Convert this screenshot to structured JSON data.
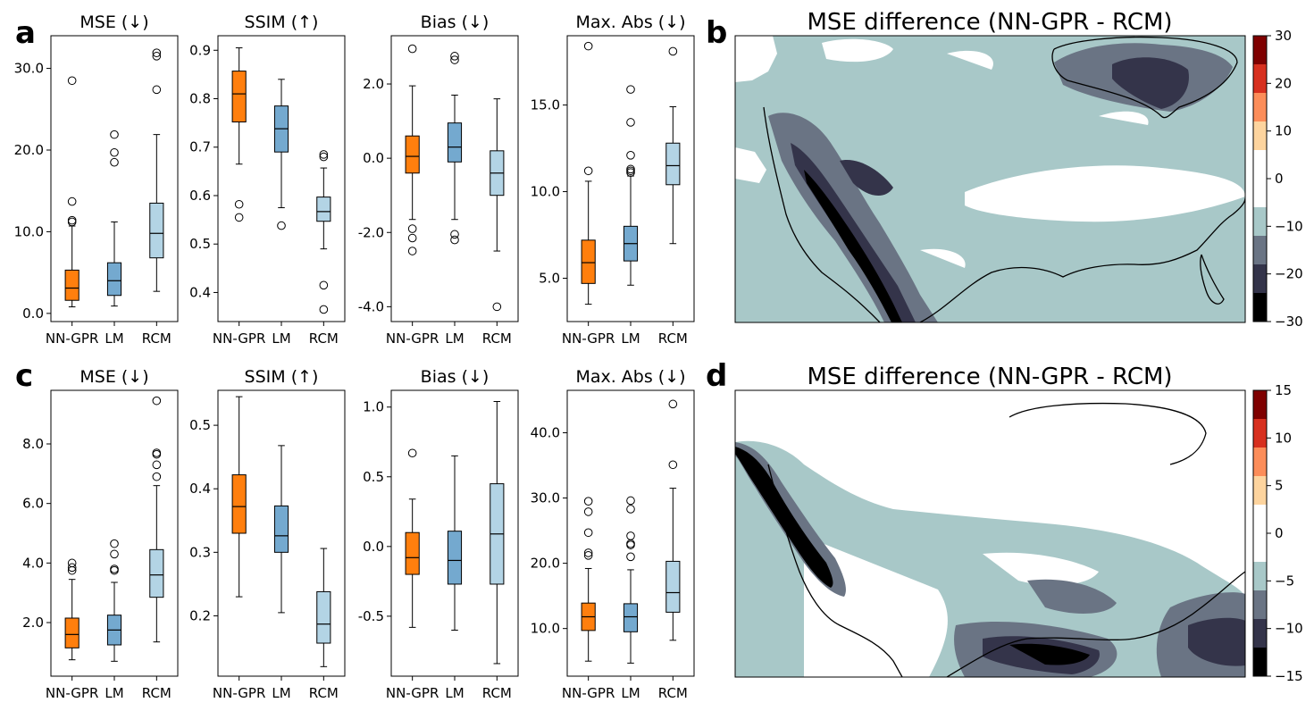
{
  "colors": {
    "nngpr": "#ff7f0e",
    "lm": "#74a9cf",
    "rcm": "#b3d4e5",
    "map_neg": [
      "#000000",
      "#34344a",
      "#6a7484",
      "#a8c8c8"
    ],
    "map_zero": "#ffffff",
    "map_pos": [
      "#fdd49e",
      "#fc8d59",
      "#d7301f",
      "#7f0000"
    ]
  },
  "panels": {
    "a": {
      "label": "a"
    },
    "b": {
      "label": "b",
      "title": "MSE difference (NN-GPR - RCM)",
      "colorbar_ticks": [
        "30",
        "20",
        "10",
        "0",
        "−10",
        "−20",
        "−30"
      ]
    },
    "c": {
      "label": "c"
    },
    "d": {
      "label": "d",
      "title": "MSE difference (NN-GPR - RCM)",
      "colorbar_ticks": [
        "15",
        "10",
        "5",
        "0",
        "−5",
        "−10",
        "−15"
      ]
    }
  },
  "chart_data": [
    {
      "type": "box",
      "id": "a1",
      "title": "MSE (↓)",
      "categories": [
        "NN-GPR",
        "LM",
        "RCM"
      ],
      "ylim": [
        -1.0,
        34.0
      ],
      "yticks": [
        0,
        10,
        20,
        30
      ],
      "ytick_labels": [
        "0.0",
        "10.0",
        "20.0",
        "30.0"
      ],
      "boxes": [
        {
          "whislo": 0.8,
          "q1": 1.6,
          "med": 3.1,
          "q3": 5.3,
          "whishi": 10.7,
          "fliers": [
            11.2,
            11.4,
            13.7,
            28.5
          ]
        },
        {
          "whislo": 0.9,
          "q1": 2.2,
          "med": 4.0,
          "q3": 6.2,
          "whishi": 11.2,
          "fliers": [
            18.5,
            19.7,
            21.9
          ]
        },
        {
          "whislo": 2.7,
          "q1": 6.8,
          "med": 9.8,
          "q3": 13.5,
          "whishi": 21.9,
          "fliers": [
            27.4,
            31.5,
            31.9
          ]
        }
      ]
    },
    {
      "type": "box",
      "id": "a2",
      "title": "SSIM (↑)",
      "categories": [
        "NN-GPR",
        "LM",
        "RCM"
      ],
      "ylim": [
        0.34,
        0.93
      ],
      "yticks": [
        0.4,
        0.5,
        0.6,
        0.7,
        0.8,
        0.9
      ],
      "ytick_labels": [
        "0.4",
        "0.5",
        "0.6",
        "0.7",
        "0.8",
        "0.9"
      ],
      "boxes": [
        {
          "whislo": 0.665,
          "q1": 0.752,
          "med": 0.81,
          "q3": 0.857,
          "whishi": 0.905,
          "fliers": [
            0.555,
            0.582
          ]
        },
        {
          "whislo": 0.575,
          "q1": 0.69,
          "med": 0.738,
          "q3": 0.785,
          "whishi": 0.84,
          "fliers": [
            0.538
          ]
        },
        {
          "whislo": 0.49,
          "q1": 0.547,
          "med": 0.567,
          "q3": 0.597,
          "whishi": 0.657,
          "fliers": [
            0.365,
            0.415,
            0.68,
            0.685
          ]
        }
      ]
    },
    {
      "type": "box",
      "id": "a3",
      "title": "Bias (↓)",
      "categories": [
        "NN-GPR",
        "LM",
        "RCM"
      ],
      "ylim": [
        -4.4,
        3.3
      ],
      "yticks": [
        -4,
        -2,
        0,
        2
      ],
      "ytick_labels": [
        "-4.0",
        "-2.0",
        "0.0",
        "2.0"
      ],
      "boxes": [
        {
          "whislo": -1.65,
          "q1": -0.4,
          "med": 0.05,
          "q3": 0.6,
          "whishi": 1.95,
          "fliers": [
            -1.9,
            -2.15,
            -2.5,
            2.95
          ]
        },
        {
          "whislo": -1.65,
          "q1": -0.1,
          "med": 0.3,
          "q3": 0.95,
          "whishi": 1.7,
          "fliers": [
            -2.05,
            -2.2,
            2.65,
            2.75
          ]
        },
        {
          "whislo": -2.5,
          "q1": -1.0,
          "med": -0.4,
          "q3": 0.2,
          "whishi": 1.6,
          "fliers": [
            -4.0
          ]
        }
      ]
    },
    {
      "type": "box",
      "id": "a4",
      "title": "Max. Abs (↓)",
      "categories": [
        "NN-GPR",
        "LM",
        "RCM"
      ],
      "ylim": [
        2.5,
        19.0
      ],
      "yticks": [
        5,
        10,
        15
      ],
      "ytick_labels": [
        "5.0",
        "10.0",
        "15.0"
      ],
      "boxes": [
        {
          "whislo": 3.5,
          "q1": 4.7,
          "med": 5.9,
          "q3": 7.2,
          "whishi": 10.6,
          "fliers": [
            11.2,
            18.4
          ]
        },
        {
          "whislo": 4.6,
          "q1": 6.0,
          "med": 7.0,
          "q3": 8.0,
          "whishi": 10.9,
          "fliers": [
            11.1,
            11.2,
            11.3,
            12.1,
            14.0,
            15.9
          ]
        },
        {
          "whislo": 7.0,
          "q1": 10.4,
          "med": 11.5,
          "q3": 12.8,
          "whishi": 14.9,
          "fliers": [
            18.1
          ]
        }
      ]
    },
    {
      "type": "box",
      "id": "c1",
      "title": "MSE (↓)",
      "categories": [
        "NN-GPR",
        "LM",
        "RCM"
      ],
      "ylim": [
        0.2,
        9.8
      ],
      "yticks": [
        2,
        4,
        6,
        8
      ],
      "ytick_labels": [
        "2.0",
        "4.0",
        "6.0",
        "8.0"
      ],
      "boxes": [
        {
          "whislo": 0.75,
          "q1": 1.15,
          "med": 1.6,
          "q3": 2.15,
          "whishi": 3.45,
          "fliers": [
            3.75,
            3.85,
            4.0
          ]
        },
        {
          "whislo": 0.7,
          "q1": 1.25,
          "med": 1.75,
          "q3": 2.25,
          "whishi": 3.35,
          "fliers": [
            3.75,
            3.8,
            4.3,
            4.65
          ]
        },
        {
          "whislo": 1.35,
          "q1": 2.85,
          "med": 3.6,
          "q3": 4.45,
          "whishi": 6.6,
          "fliers": [
            6.9,
            7.3,
            7.65,
            7.7,
            9.45
          ]
        }
      ]
    },
    {
      "type": "box",
      "id": "c2",
      "title": "SSIM (↑)",
      "categories": [
        "NN-GPR",
        "LM",
        "RCM"
      ],
      "ylim": [
        0.105,
        0.555
      ],
      "yticks": [
        0.2,
        0.3,
        0.4,
        0.5
      ],
      "ytick_labels": [
        "0.2",
        "0.3",
        "0.4",
        "0.5"
      ],
      "boxes": [
        {
          "whislo": 0.23,
          "q1": 0.33,
          "med": 0.372,
          "q3": 0.422,
          "whishi": 0.545,
          "fliers": []
        },
        {
          "whislo": 0.205,
          "q1": 0.3,
          "med": 0.326,
          "q3": 0.373,
          "whishi": 0.468,
          "fliers": []
        },
        {
          "whislo": 0.12,
          "q1": 0.157,
          "med": 0.187,
          "q3": 0.238,
          "whishi": 0.306,
          "fliers": []
        }
      ]
    },
    {
      "type": "box",
      "id": "c3",
      "title": "Bias (↓)",
      "categories": [
        "NN-GPR",
        "LM",
        "RCM"
      ],
      "ylim": [
        -0.93,
        1.12
      ],
      "yticks": [
        -0.5,
        0.0,
        0.5,
        1.0
      ],
      "ytick_labels": [
        "-0.5",
        "0.0",
        "0.5",
        "1.0"
      ],
      "boxes": [
        {
          "whislo": -0.58,
          "q1": -0.2,
          "med": -0.08,
          "q3": 0.1,
          "whishi": 0.34,
          "fliers": [
            0.67
          ]
        },
        {
          "whislo": -0.6,
          "q1": -0.27,
          "med": -0.1,
          "q3": 0.11,
          "whishi": 0.65,
          "fliers": []
        },
        {
          "whislo": -0.84,
          "q1": -0.27,
          "med": 0.09,
          "q3": 0.45,
          "whishi": 1.04,
          "fliers": []
        }
      ]
    },
    {
      "type": "box",
      "id": "c4",
      "title": "Max. Abs (↓)",
      "categories": [
        "NN-GPR",
        "LM",
        "RCM"
      ],
      "ylim": [
        2.7,
        46.5
      ],
      "yticks": [
        10,
        20,
        30,
        40
      ],
      "ytick_labels": [
        "10.0",
        "20.0",
        "30.0",
        "40.0"
      ],
      "boxes": [
        {
          "whislo": 5.0,
          "q1": 9.7,
          "med": 11.8,
          "q3": 13.9,
          "whishi": 19.2,
          "fliers": [
            21.2,
            21.6,
            24.7,
            27.9,
            29.5
          ]
        },
        {
          "whislo": 4.7,
          "q1": 9.5,
          "med": 11.8,
          "q3": 13.8,
          "whishi": 19.0,
          "fliers": [
            21.0,
            22.8,
            23.0,
            24.2,
            28.3,
            29.6
          ]
        },
        {
          "whislo": 8.2,
          "q1": 12.5,
          "med": 15.5,
          "q3": 20.3,
          "whishi": 31.5,
          "fliers": [
            35.1,
            44.4
          ]
        }
      ]
    }
  ]
}
